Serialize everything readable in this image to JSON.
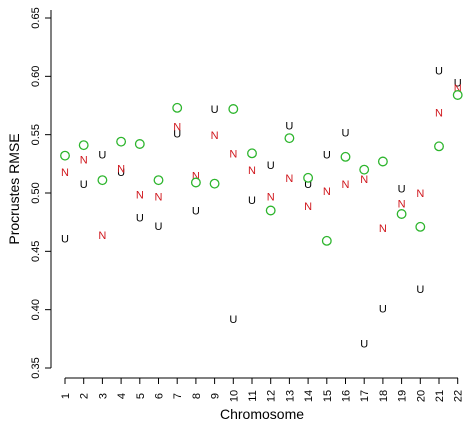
{
  "chart_data": {
    "type": "scatter",
    "xlabel": "Chromosome",
    "ylabel": "Procrustes RMSE",
    "ylim": [
      0.345,
      0.655
    ],
    "yticks": [
      0.35,
      0.4,
      0.45,
      0.5,
      0.55,
      0.6,
      0.65
    ],
    "ytick_labels": [
      "0.35",
      "0.40",
      "0.45",
      "0.50",
      "0.55",
      "0.60",
      "0.65"
    ],
    "xlim": [
      0.4,
      22.6
    ],
    "categories": [
      "1",
      "2",
      "3",
      "4",
      "5",
      "6",
      "7",
      "8",
      "9",
      "10",
      "11",
      "12",
      "13",
      "14",
      "15",
      "16",
      "17",
      "18",
      "19",
      "20",
      "21",
      "22"
    ],
    "grid": false,
    "series": [
      {
        "marker": "U",
        "color": "#000000",
        "values": [
          0.46,
          0.507,
          0.532,
          0.517,
          0.478,
          0.471,
          0.55,
          0.484,
          0.571,
          0.391,
          0.493,
          0.523,
          0.557,
          0.507,
          0.532,
          0.551,
          0.37,
          0.4,
          0.503,
          0.417,
          0.604,
          0.594
        ]
      },
      {
        "marker": "N",
        "color": "#d0171d",
        "values": [
          0.517,
          0.528,
          0.463,
          0.52,
          0.498,
          0.496,
          0.556,
          0.514,
          0.549,
          0.533,
          0.519,
          0.496,
          0.512,
          0.488,
          0.501,
          0.507,
          0.511,
          0.469,
          0.49,
          0.499,
          0.568,
          0.589
        ]
      },
      {
        "marker": "O",
        "color": "#2db52d",
        "values": [
          0.532,
          0.541,
          0.511,
          0.544,
          0.542,
          0.511,
          0.573,
          0.509,
          0.508,
          0.572,
          0.534,
          0.485,
          0.547,
          0.513,
          0.459,
          0.531,
          0.52,
          0.527,
          0.482,
          0.471,
          0.54,
          0.584
        ]
      }
    ]
  }
}
